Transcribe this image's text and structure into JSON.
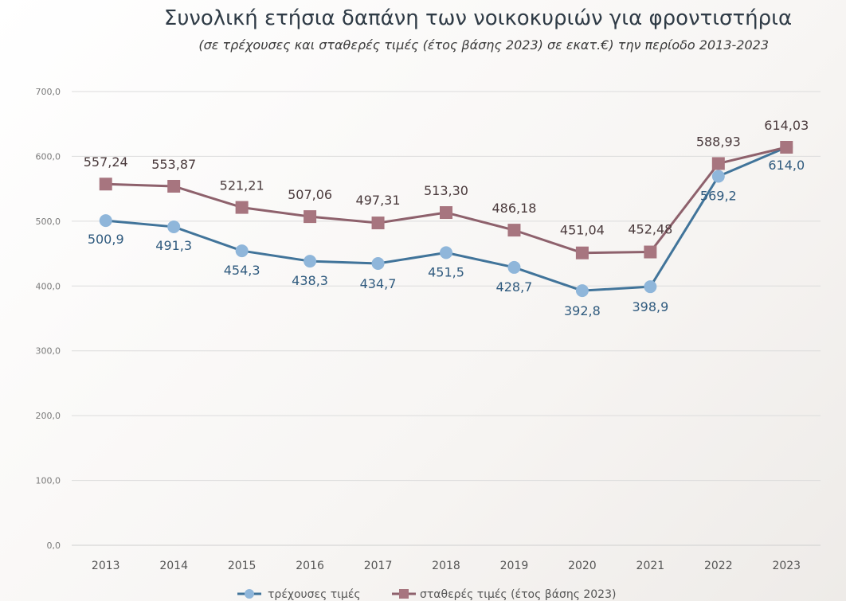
{
  "chart_data": {
    "type": "line",
    "title": "Συνολική ετήσια δαπάνη των νοικοκυριών για φροντιστήρια",
    "subtitle": "(σε τρέχουσες και σταθερές τιμές (έτος βάσης 2023) σε εκατ.€) την περίοδο 2013-2023",
    "categories": [
      "2013",
      "2014",
      "2015",
      "2016",
      "2017",
      "2018",
      "2019",
      "2020",
      "2021",
      "2022",
      "2023"
    ],
    "ylim": [
      0,
      700
    ],
    "yticks": [
      "0,0",
      "100,0",
      "200,0",
      "300,0",
      "400,0",
      "500,0",
      "600,0",
      "700,0"
    ],
    "grid": true,
    "legend_position": "bottom",
    "series": [
      {
        "name": "τρέχουσες τιμές",
        "marker": "circle",
        "color": "#41749a",
        "marker_color": "#8fb6da",
        "label_color": "#2f5a7e",
        "values": [
          500.9,
          491.3,
          454.3,
          438.3,
          434.7,
          451.5,
          428.7,
          392.8,
          398.9,
          569.2,
          614.0
        ],
        "labels": [
          "500,9",
          "491,3",
          "454,3",
          "438,3",
          "434,7",
          "451,5",
          "428,7",
          "392,8",
          "398,9",
          "569,2",
          "614,0"
        ]
      },
      {
        "name": "σταθερές τιμές (έτος βάσης 2023)",
        "marker": "square",
        "color": "#8e616c",
        "marker_color": "#a7757f",
        "label_color": "#4a3a3c",
        "values": [
          557.24,
          553.87,
          521.21,
          507.06,
          497.31,
          513.3,
          486.18,
          451.04,
          452.48,
          588.93,
          614.03
        ],
        "labels": [
          "557,24",
          "553,87",
          "521,21",
          "507,06",
          "497,31",
          "513,30",
          "486,18",
          "451,04",
          "452,48",
          "588,93",
          "614,03"
        ]
      }
    ]
  }
}
